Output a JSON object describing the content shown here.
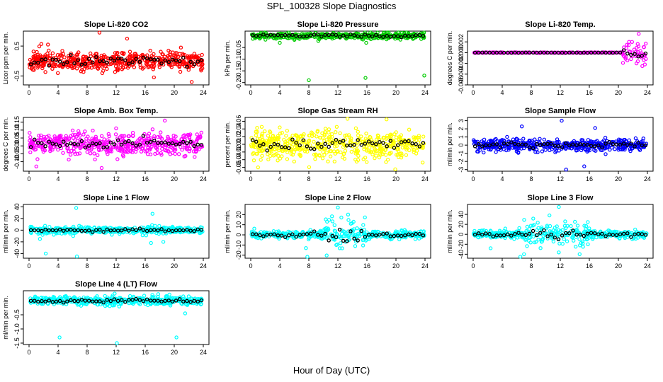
{
  "title": "SPL_100328  Slope Diagnostics",
  "xlabel": "Hour of Day (UTC)",
  "colors": {
    "background": "#ffffff",
    "axis": "#000000",
    "hourly_mean": "#000000"
  },
  "chart_data": [
    {
      "type": "scatter",
      "title": "Slope Li-820 CO2",
      "ylabel": "Licor ppm per min.",
      "xlim": [
        0,
        24
      ],
      "ylim": [
        -0.8,
        1.0
      ],
      "xticks": [
        0,
        4,
        8,
        12,
        16,
        20,
        24
      ],
      "yticks": [
        -0.5,
        0.5
      ],
      "ytick_labels": [
        "-0.5",
        "0.5"
      ],
      "color": "#ff0000",
      "center": 0.0,
      "spread": 0.16,
      "n": 520,
      "seed": 11,
      "outliers": [
        {
          "x": 9.7,
          "y": 0.95
        },
        {
          "x": 13.5,
          "y": 0.75
        },
        {
          "x": 22.4,
          "y": -0.7
        },
        {
          "x": 2.6,
          "y": 0.55
        },
        {
          "x": 17.2,
          "y": -0.55
        }
      ]
    },
    {
      "type": "scatter",
      "title": "Slope Li-820 Pressure",
      "ylabel": "kPa per min.",
      "xlim": [
        0,
        24
      ],
      "ylim": [
        -0.21,
        0.02
      ],
      "xticks": [
        0,
        4,
        8,
        12,
        16,
        20,
        24
      ],
      "yticks": [
        -0.2,
        -0.15,
        -0.1,
        -0.05
      ],
      "ytick_labels": [
        "-0.20",
        "-0.15",
        "-0.10",
        "-0.05"
      ],
      "color": "#00cc00",
      "center": 0.0,
      "spread": 0.006,
      "n": 480,
      "seed": 23,
      "outliers": [
        {
          "x": 8.0,
          "y": -0.19
        },
        {
          "x": 15.8,
          "y": -0.18
        },
        {
          "x": 23.9,
          "y": -0.17
        },
        {
          "x": 4.0,
          "y": -0.03
        },
        {
          "x": 15.9,
          "y": -0.03
        }
      ]
    },
    {
      "type": "scatter",
      "title": "Slope Li-820 Temp.",
      "ylabel": "degrees C per min.",
      "xlim": [
        0,
        24
      ],
      "ylim": [
        -0.006,
        0.004
      ],
      "xticks": [
        0,
        4,
        8,
        12,
        16,
        20,
        24
      ],
      "yticks": [
        -0.006,
        -0.004,
        -0.002,
        0.0,
        0.002
      ],
      "ytick_labels": [
        "-0.006",
        "-0.004",
        "-0.002",
        "0.000",
        "0.002"
      ],
      "color": "#ff00ff",
      "center": 0.0,
      "spread": 3e-05,
      "n": 300,
      "seed": 31,
      "noisy_from": 20.5,
      "noisy_spread": 0.0012,
      "outliers": [
        {
          "x": 22.8,
          "y": 0.0035
        },
        {
          "x": 23.3,
          "y": -0.0025
        },
        {
          "x": 22.5,
          "y": -0.002
        }
      ]
    },
    {
      "type": "scatter",
      "title": "Slope Amb. Box Temp.",
      "ylabel": "degrees C per min.",
      "xlim": [
        0,
        24
      ],
      "ylim": [
        -0.16,
        0.18
      ],
      "xticks": [
        0,
        4,
        8,
        12,
        16,
        20,
        24
      ],
      "yticks": [
        -0.1,
        -0.05,
        0.0,
        0.05,
        0.1,
        0.15
      ],
      "ytick_labels": [
        "-0.10",
        "-0.05",
        "0.00",
        "0.05",
        "0.10",
        "0.15"
      ],
      "color": "#ff00ff",
      "center": 0.01,
      "spread": 0.035,
      "n": 480,
      "seed": 47,
      "outliers": [
        {
          "x": 10.0,
          "y": -0.14
        },
        {
          "x": 18.7,
          "y": 0.16
        },
        {
          "x": 1.0,
          "y": -0.13
        }
      ]
    },
    {
      "type": "scatter",
      "title": "Slope Gas Stream RH",
      "ylabel": "percent per min.",
      "xlim": [
        0,
        24
      ],
      "ylim": [
        -0.07,
        0.07
      ],
      "xticks": [
        0,
        4,
        8,
        12,
        16,
        20,
        24
      ],
      "yticks": [
        -0.06,
        -0.04,
        -0.02,
        0.0,
        0.02,
        0.04,
        0.06
      ],
      "ytick_labels": [
        "-0.06",
        "-0.04",
        "-0.02",
        "0.00",
        "0.02",
        "0.04",
        "0.06"
      ],
      "color": "#ffff00",
      "center": 0.0,
      "spread": 0.018,
      "n": 520,
      "seed": 59,
      "outliers": [
        {
          "x": 18.7,
          "y": 0.065
        },
        {
          "x": 19.9,
          "y": -0.065
        },
        {
          "x": 1.0,
          "y": -0.06
        }
      ]
    },
    {
      "type": "scatter",
      "title": "Slope Sample Flow",
      "ylabel": "ml/min per min.",
      "xlim": [
        0,
        24
      ],
      "ylim": [
        -3.2,
        3.4
      ],
      "xticks": [
        0,
        4,
        8,
        12,
        16,
        20,
        24
      ],
      "yticks": [
        -3,
        -2,
        -1,
        0,
        1,
        2,
        3
      ],
      "ytick_labels": [
        "-3",
        "-2",
        "-1",
        "0",
        "1",
        "2",
        "3"
      ],
      "color": "#0000ff",
      "center": 0.0,
      "spread": 0.35,
      "n": 480,
      "seed": 71,
      "outliers": [
        {
          "x": 12.2,
          "y": 3.0
        },
        {
          "x": 12.8,
          "y": -3.0
        },
        {
          "x": 15.3,
          "y": -2.6
        },
        {
          "x": 6.7,
          "y": 2.3
        },
        {
          "x": 16.8,
          "y": 2.1
        }
      ]
    },
    {
      "type": "scatter",
      "title": "Slope Line 1 Flow",
      "ylabel": "ml/min per min.",
      "xlim": [
        0,
        24
      ],
      "ylim": [
        -48,
        44
      ],
      "xticks": [
        0,
        4,
        8,
        12,
        16,
        20,
        24
      ],
      "yticks": [
        -40,
        -20,
        0,
        20,
        40
      ],
      "ytick_labels": [
        "-40",
        "-20",
        "0",
        "20",
        "40"
      ],
      "color": "#00ffff",
      "center": 0.0,
      "spread": 3.0,
      "n": 420,
      "seed": 83,
      "outliers": [
        {
          "x": 6.5,
          "y": 38
        },
        {
          "x": 6.6,
          "y": -45
        },
        {
          "x": 2.3,
          "y": -40
        },
        {
          "x": 17.0,
          "y": 28
        },
        {
          "x": 16.8,
          "y": -22
        },
        {
          "x": 18.5,
          "y": -20
        },
        {
          "x": 1.5,
          "y": -15
        }
      ]
    },
    {
      "type": "scatter",
      "title": "Slope Line 2 Flow",
      "ylabel": "ml/min per min.",
      "xlim": [
        0,
        24
      ],
      "ylim": [
        -23,
        30
      ],
      "xticks": [
        0,
        4,
        8,
        12,
        16,
        20,
        24
      ],
      "yticks": [
        -20,
        -10,
        0,
        10,
        20
      ],
      "ytick_labels": [
        "-20",
        "-10",
        "0",
        "10",
        "20"
      ],
      "color": "#00ffff",
      "center": 0.0,
      "spread": 2.0,
      "n": 420,
      "seed": 97,
      "burst_from": 10,
      "burst_to": 16,
      "burst_spread": 9,
      "outliers": [
        {
          "x": 7.8,
          "y": -22
        },
        {
          "x": 12.0,
          "y": 27
        },
        {
          "x": 13.4,
          "y": 20
        },
        {
          "x": 7.6,
          "y": -13
        }
      ]
    },
    {
      "type": "scatter",
      "title": "Slope Line 3 Flow",
      "ylabel": "ml/min per min.",
      "xlim": [
        0,
        24
      ],
      "ylim": [
        -48,
        60
      ],
      "xticks": [
        0,
        4,
        8,
        12,
        16,
        20,
        24
      ],
      "yticks": [
        -40,
        -20,
        0,
        20,
        40
      ],
      "ytick_labels": [
        "-40",
        "-20",
        "0",
        "20",
        "40"
      ],
      "color": "#00ffff",
      "center": 0.0,
      "spread": 4.0,
      "n": 420,
      "seed": 113,
      "burst_from": 7,
      "burst_to": 16,
      "burst_spread": 15,
      "outliers": [
        {
          "x": 11.8,
          "y": 55
        },
        {
          "x": 6.5,
          "y": -45
        },
        {
          "x": 7.0,
          "y": -40
        },
        {
          "x": 2.4,
          "y": -28
        },
        {
          "x": 15.8,
          "y": -20
        }
      ]
    },
    {
      "type": "scatter",
      "title": "Slope Line 4 (LT) Flow",
      "ylabel": "ml/min per min.",
      "xlim": [
        0,
        24
      ],
      "ylim": [
        -1.55,
        0.35
      ],
      "xticks": [
        0,
        4,
        8,
        12,
        16,
        20,
        24
      ],
      "yticks": [
        -1.5,
        -1.0,
        -0.5
      ],
      "ytick_labels": [
        "-1.5",
        "-1.0",
        "-0.5"
      ],
      "color": "#00ffff",
      "center": 0.0,
      "spread": 0.07,
      "n": 480,
      "seed": 131,
      "outliers": [
        {
          "x": 4.2,
          "y": -1.3
        },
        {
          "x": 12.1,
          "y": -1.5
        },
        {
          "x": 20.3,
          "y": -1.3
        },
        {
          "x": 11.8,
          "y": 0.25
        },
        {
          "x": 21.5,
          "y": -0.45
        }
      ]
    }
  ]
}
